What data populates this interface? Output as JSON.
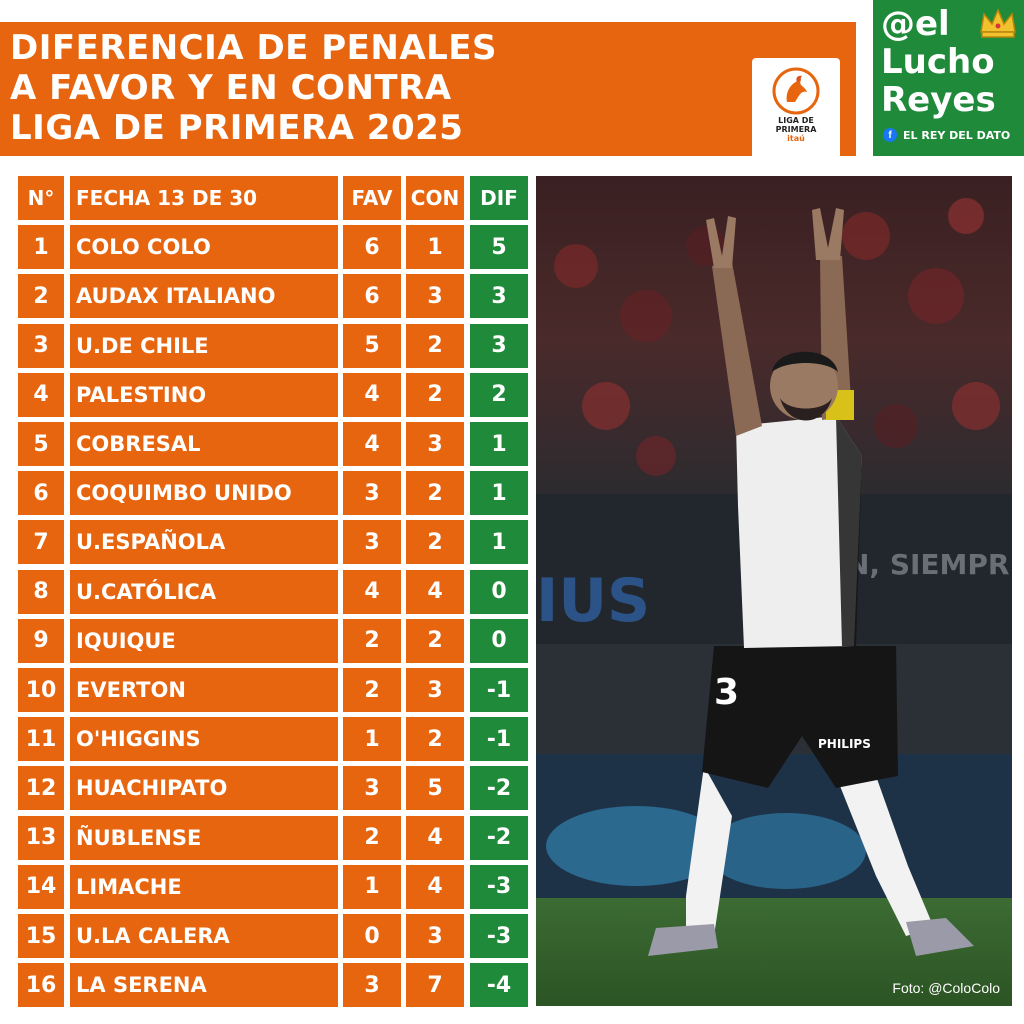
{
  "header": {
    "title_lines": [
      "DIFERENCIA DE PENALES",
      "A FAVOR Y EN CONTRA",
      "LIGA DE PRIMERA 2025"
    ],
    "league_logo": {
      "line1": "LIGA DE",
      "line2": "PRIMERA",
      "line3": "itaú"
    }
  },
  "brand": {
    "line1": "@el",
    "line2": "Lucho",
    "line3": "Reyes",
    "tagline": "EL REY DEL DATO",
    "colors": {
      "orange": "#e8650f",
      "green": "#1f8a3a"
    }
  },
  "table": {
    "headers": {
      "num": "N°",
      "team": "FECHA 13 DE 30",
      "fav": "FAV",
      "con": "CON",
      "dif": "DIF"
    },
    "rows": [
      {
        "num": "1",
        "team": "COLO COLO",
        "fav": "6",
        "con": "1",
        "dif": "5"
      },
      {
        "num": "2",
        "team": "AUDAX ITALIANO",
        "fav": "6",
        "con": "3",
        "dif": "3"
      },
      {
        "num": "3",
        "team": "U.DE CHILE",
        "fav": "5",
        "con": "2",
        "dif": "3"
      },
      {
        "num": "4",
        "team": "PALESTINO",
        "fav": "4",
        "con": "2",
        "dif": "2"
      },
      {
        "num": "5",
        "team": "COBRESAL",
        "fav": "4",
        "con": "3",
        "dif": "1"
      },
      {
        "num": "6",
        "team": "COQUIMBO UNIDO",
        "fav": "3",
        "con": "2",
        "dif": "1"
      },
      {
        "num": "7",
        "team": "U.ESPAÑOLA",
        "fav": "3",
        "con": "2",
        "dif": "1"
      },
      {
        "num": "8",
        "team": "U.CATÓLICA",
        "fav": "4",
        "con": "4",
        "dif": "0"
      },
      {
        "num": "9",
        "team": "IQUIQUE",
        "fav": "2",
        "con": "2",
        "dif": "0"
      },
      {
        "num": "10",
        "team": "EVERTON",
        "fav": "2",
        "con": "3",
        "dif": "-1"
      },
      {
        "num": "11",
        "team": "O'HIGGINS",
        "fav": "1",
        "con": "2",
        "dif": "-1"
      },
      {
        "num": "12",
        "team": "HUACHIPATO",
        "fav": "3",
        "con": "5",
        "dif": "-2"
      },
      {
        "num": "13",
        "team": "ÑUBLENSE",
        "fav": "2",
        "con": "4",
        "dif": "-2"
      },
      {
        "num": "14",
        "team": "LIMACHE",
        "fav": "1",
        "con": "4",
        "dif": "-3"
      },
      {
        "num": "15",
        "team": "U.LA CALERA",
        "fav": "0",
        "con": "3",
        "dif": "-3"
      },
      {
        "num": "16",
        "team": "LA SERENA",
        "fav": "3",
        "con": "7",
        "dif": "-4"
      }
    ]
  },
  "photo": {
    "credit": "Foto: @ColoColo",
    "stadium_text": "IUS",
    "banner_text": "N, SIEMPR",
    "jersey_number": "3",
    "sponsor": "PHILIPS"
  }
}
